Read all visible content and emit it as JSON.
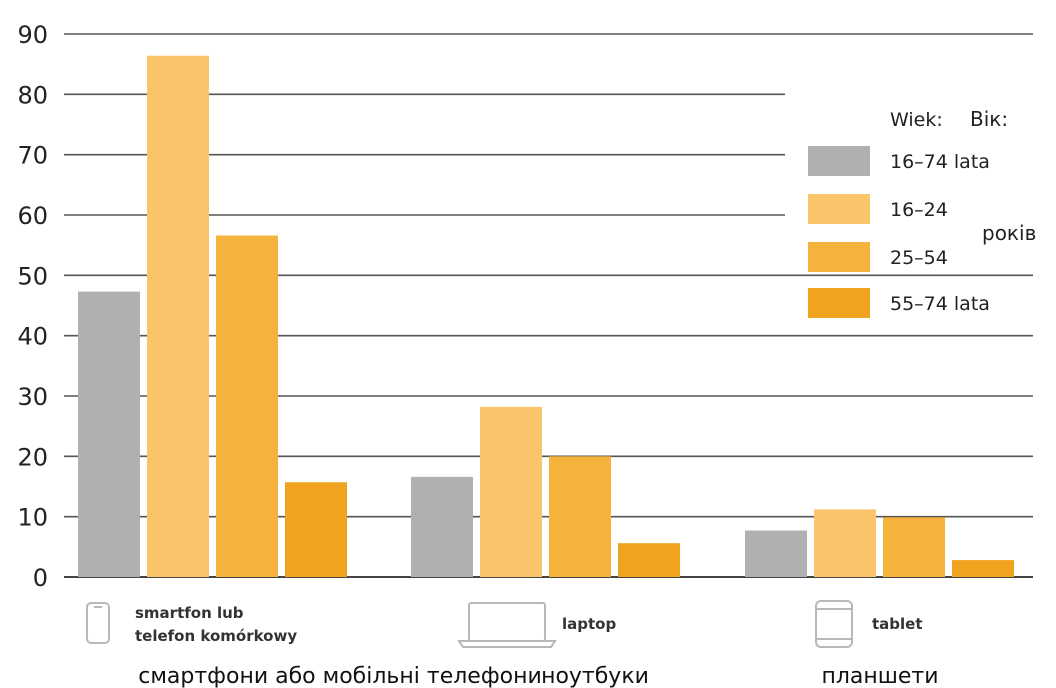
{
  "chart_data": {
    "type": "bar",
    "ylim": [
      0,
      90
    ],
    "yticks": [
      0,
      10,
      20,
      30,
      40,
      50,
      60,
      70,
      80,
      90
    ],
    "grid": "horizontal",
    "legend_position": "right",
    "legend_title": "Wiek:",
    "legend_title_extra": "Вік:",
    "legend_unit_extra": "років",
    "categories": [
      {
        "label_lines": [
          "smartfon lub",
          "telefon komórkowy"
        ],
        "label_uk": "смартфони або мобільні телефони",
        "icon": "smartphone-icon"
      },
      {
        "label_lines": [
          "laptop"
        ],
        "label_uk": "ноутбуки",
        "icon": "laptop-icon"
      },
      {
        "label_lines": [
          "tablet"
        ],
        "label_uk": "планшети",
        "icon": "tablet-icon"
      }
    ],
    "series": [
      {
        "name": "16–74 lata",
        "color": "#b0b0b0",
        "values": [
          47.3,
          16.6,
          7.7
        ]
      },
      {
        "name": "16–24",
        "color": "#f9c56a",
        "values": [
          86.4,
          28.2,
          11.2
        ]
      },
      {
        "name": "25–54",
        "color": "#f5b23c",
        "values": [
          56.6,
          20.0,
          9.9
        ]
      },
      {
        "name": "55–74 lata",
        "color": "#f0a31f",
        "values": [
          15.7,
          5.6,
          2.8
        ]
      }
    ]
  }
}
